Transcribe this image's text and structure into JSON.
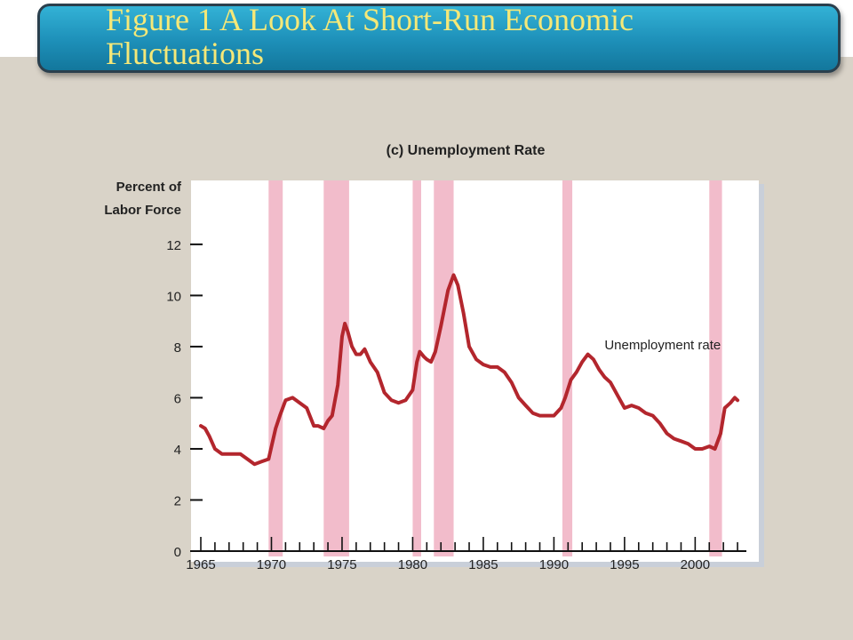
{
  "slide": {
    "title": "Figure 1 A Look At Short-Run Economic\nFluctuations",
    "banner_color": "#1d8fb8",
    "title_color": "#f5e878"
  },
  "chart_data": {
    "type": "line",
    "title": "(c) Unemployment Rate",
    "ylabel_lines": [
      "Percent of",
      "Labor Force"
    ],
    "xlabel": "",
    "xlim": [
      1965,
      2003.5
    ],
    "ylim": [
      0,
      14.5
    ],
    "yticks": [
      0,
      2,
      4,
      6,
      8,
      10,
      12
    ],
    "xticks": [
      1965,
      1970,
      1975,
      1980,
      1985,
      1990,
      1995,
      2000
    ],
    "recession_color": "#f2bccb",
    "line_color": "#b3262d",
    "recessions": [
      [
        1969.8,
        1970.8
      ],
      [
        1973.7,
        1975.5
      ],
      [
        1980.0,
        1980.6
      ],
      [
        1981.5,
        1982.9
      ],
      [
        1990.6,
        1991.3
      ],
      [
        2001.0,
        2001.9
      ]
    ],
    "series": [
      {
        "name": "Unemployment rate",
        "x": [
          1965.0,
          1965.3,
          1965.6,
          1966.0,
          1966.5,
          1967.0,
          1967.3,
          1967.8,
          1968.3,
          1968.8,
          1969.3,
          1969.8,
          1970.3,
          1970.6,
          1971.0,
          1971.5,
          1972.0,
          1972.5,
          1973.0,
          1973.3,
          1973.7,
          1974.0,
          1974.3,
          1974.7,
          1975.0,
          1975.2,
          1975.4,
          1975.7,
          1976.0,
          1976.3,
          1976.6,
          1977.0,
          1977.5,
          1978.0,
          1978.5,
          1979.0,
          1979.5,
          1980.0,
          1980.3,
          1980.5,
          1980.8,
          1981.0,
          1981.3,
          1981.6,
          1982.0,
          1982.5,
          1982.9,
          1983.2,
          1983.6,
          1984.0,
          1984.5,
          1985.0,
          1985.5,
          1986.0,
          1986.5,
          1987.0,
          1987.5,
          1988.0,
          1988.5,
          1989.0,
          1989.5,
          1990.0,
          1990.5,
          1990.8,
          1991.2,
          1991.6,
          1992.0,
          1992.4,
          1992.8,
          1993.2,
          1993.6,
          1994.0,
          1994.5,
          1995.0,
          1995.5,
          1996.0,
          1996.5,
          1997.0,
          1997.5,
          1998.0,
          1998.5,
          1999.0,
          1999.5,
          2000.0,
          2000.5,
          2001.0,
          2001.4,
          2001.8,
          2002.1,
          2002.5,
          2002.8,
          2003.0
        ],
        "y": [
          4.9,
          4.8,
          4.5,
          4.0,
          3.8,
          3.8,
          3.8,
          3.8,
          3.6,
          3.4,
          3.5,
          3.6,
          4.8,
          5.3,
          5.9,
          6.0,
          5.8,
          5.6,
          4.9,
          4.9,
          4.8,
          5.1,
          5.3,
          6.5,
          8.4,
          8.9,
          8.6,
          8.0,
          7.7,
          7.7,
          7.9,
          7.4,
          7.0,
          6.2,
          5.9,
          5.8,
          5.9,
          6.3,
          7.4,
          7.8,
          7.6,
          7.5,
          7.4,
          7.8,
          8.8,
          10.2,
          10.8,
          10.4,
          9.3,
          8.0,
          7.5,
          7.3,
          7.2,
          7.2,
          7.0,
          6.6,
          6.0,
          5.7,
          5.4,
          5.3,
          5.3,
          5.3,
          5.6,
          6.0,
          6.7,
          7.0,
          7.4,
          7.7,
          7.5,
          7.1,
          6.8,
          6.6,
          6.1,
          5.6,
          5.7,
          5.6,
          5.4,
          5.3,
          5.0,
          4.6,
          4.4,
          4.3,
          4.2,
          4.0,
          4.0,
          4.1,
          4.0,
          4.6,
          5.6,
          5.8,
          6.0,
          5.9
        ]
      }
    ],
    "annotations": [
      {
        "text": "Unemployment rate",
        "x": 1997.7,
        "y": 7.9
      }
    ]
  }
}
